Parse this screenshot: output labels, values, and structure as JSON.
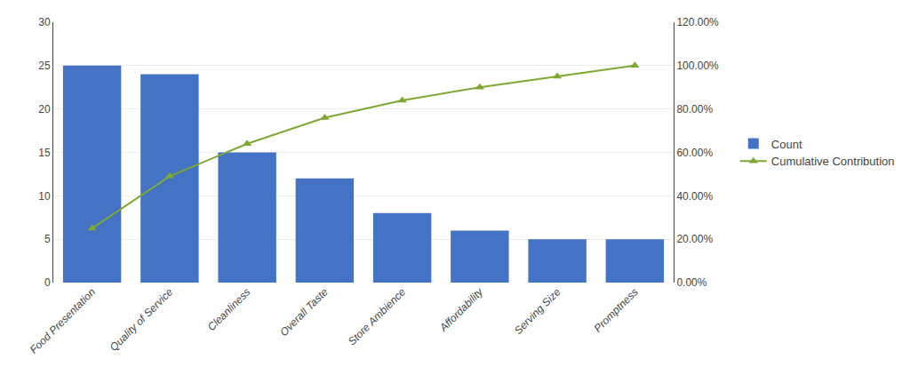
{
  "chart_data": {
    "type": "bar",
    "categories": [
      "Food Presentation",
      "Quality of Service",
      "Cleanliness",
      "Overall Taste",
      "Store Ambience",
      "Affordability",
      "Serving Size",
      "Promptness"
    ],
    "series": [
      {
        "name": "Count",
        "type": "bar",
        "color": "#4472C4",
        "values": [
          25,
          24,
          15,
          12,
          8,
          6,
          5,
          5
        ]
      },
      {
        "name": "Cumulative Contribution",
        "type": "line",
        "color": "#7DA832",
        "marker": "triangle-up",
        "axis": "y2",
        "values": [
          0.25,
          0.49,
          0.64,
          0.76,
          0.84,
          0.9,
          0.95,
          1.0
        ]
      }
    ],
    "ylim": [
      0,
      30
    ],
    "yticks": [
      0,
      5,
      10,
      15,
      20,
      25,
      30
    ],
    "y2lim": [
      0,
      1.2
    ],
    "y2ticks": [
      {
        "value": 0.0,
        "label": "0.00%"
      },
      {
        "value": 0.2,
        "label": "20.00%"
      },
      {
        "value": 0.4,
        "label": "40.00%"
      },
      {
        "value": 0.6,
        "label": "60.00%"
      },
      {
        "value": 0.8,
        "label": "80.00%"
      },
      {
        "value": 1.0,
        "label": "100.00%"
      },
      {
        "value": 1.2,
        "label": "120.00%"
      }
    ],
    "grid": true,
    "legend": "right"
  }
}
